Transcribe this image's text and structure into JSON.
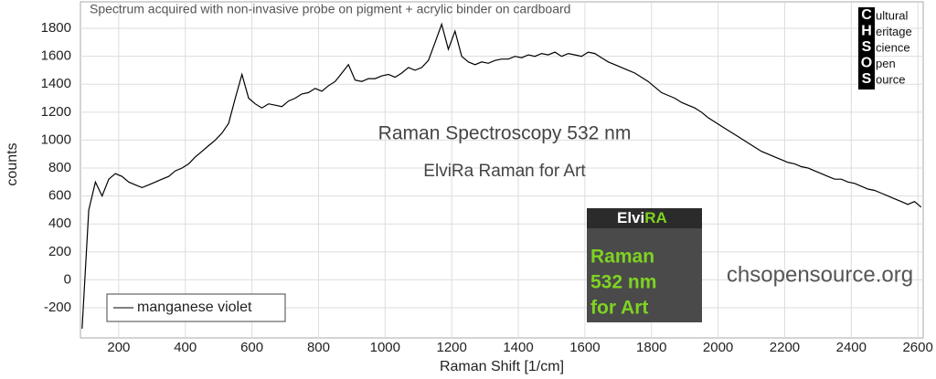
{
  "chart_data": {
    "type": "line",
    "subtitle": "Spectrum acquired with non-invasive probe on pigment + acrylic binder on cardboard",
    "annotations": [
      "Raman Spectroscopy 532 nm",
      "ElviRa Raman for Art",
      "chsopensource.org"
    ],
    "logo": {
      "initials": [
        "C",
        "H",
        "S",
        "O",
        "S"
      ],
      "words": [
        "ultural",
        "eritage",
        "cience",
        "pen",
        "ource"
      ]
    },
    "badge": {
      "title_a": "Elvi",
      "title_b": "RA",
      "lines": [
        "Raman",
        "532 nm",
        "for Art"
      ]
    },
    "x_label": "Raman Shift [1/cm]",
    "y_label": "counts",
    "xlim": [
      85,
      2616
    ],
    "ylim": [
      -416,
      1990
    ],
    "xticks": [
      200,
      400,
      600,
      800,
      1000,
      1200,
      1400,
      1600,
      1800,
      2000,
      2200,
      2400,
      2600
    ],
    "yticks": [
      -200,
      0,
      200,
      400,
      600,
      800,
      1000,
      1200,
      1400,
      1600,
      1800
    ],
    "grid": true,
    "legend": "lower left",
    "x": [
      90,
      110,
      130,
      150,
      170,
      190,
      210,
      230,
      250,
      270,
      290,
      310,
      330,
      350,
      370,
      390,
      410,
      430,
      450,
      470,
      490,
      510,
      530,
      550,
      570,
      590,
      610,
      630,
      650,
      670,
      690,
      710,
      730,
      750,
      770,
      790,
      810,
      830,
      850,
      870,
      890,
      910,
      930,
      950,
      970,
      990,
      1010,
      1030,
      1050,
      1070,
      1090,
      1110,
      1130,
      1150,
      1170,
      1190,
      1210,
      1230,
      1250,
      1270,
      1290,
      1310,
      1330,
      1350,
      1370,
      1390,
      1410,
      1430,
      1450,
      1470,
      1490,
      1510,
      1530,
      1550,
      1570,
      1590,
      1610,
      1630,
      1650,
      1670,
      1690,
      1710,
      1730,
      1750,
      1770,
      1790,
      1810,
      1830,
      1850,
      1870,
      1890,
      1910,
      1930,
      1950,
      1970,
      1990,
      2010,
      2030,
      2050,
      2070,
      2090,
      2110,
      2130,
      2150,
      2170,
      2190,
      2210,
      2230,
      2250,
      2270,
      2290,
      2310,
      2330,
      2350,
      2370,
      2390,
      2410,
      2430,
      2450,
      2470,
      2490,
      2510,
      2530,
      2550,
      2570,
      2590,
      2610
    ],
    "series": [
      {
        "name": "manganese violet",
        "color": "#000000",
        "values": [
          -350,
          500,
          700,
          600,
          720,
          760,
          740,
          700,
          680,
          660,
          680,
          700,
          720,
          740,
          780,
          800,
          830,
          880,
          920,
          960,
          1000,
          1050,
          1120,
          1300,
          1470,
          1300,
          1260,
          1230,
          1260,
          1250,
          1240,
          1280,
          1300,
          1330,
          1340,
          1370,
          1350,
          1390,
          1420,
          1480,
          1540,
          1430,
          1420,
          1440,
          1440,
          1460,
          1470,
          1450,
          1480,
          1520,
          1500,
          1520,
          1570,
          1700,
          1830,
          1650,
          1780,
          1600,
          1560,
          1540,
          1560,
          1550,
          1570,
          1580,
          1580,
          1600,
          1590,
          1610,
          1600,
          1620,
          1610,
          1630,
          1600,
          1620,
          1610,
          1600,
          1630,
          1620,
          1590,
          1560,
          1540,
          1520,
          1500,
          1480,
          1450,
          1420,
          1380,
          1340,
          1320,
          1300,
          1270,
          1250,
          1230,
          1200,
          1160,
          1130,
          1100,
          1070,
          1040,
          1010,
          980,
          950,
          920,
          900,
          880,
          860,
          840,
          830,
          810,
          800,
          780,
          760,
          740,
          720,
          720,
          700,
          690,
          670,
          650,
          640,
          620,
          600,
          580,
          560,
          540,
          560,
          520
        ]
      }
    ]
  }
}
